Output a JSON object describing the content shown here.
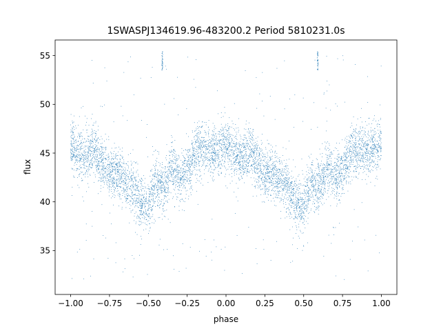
{
  "chart_data": {
    "type": "scatter",
    "title": "1SWASPJ134619.96-483200.2 Period 5810231.0s",
    "xlabel": "phase",
    "ylabel": "flux",
    "xlim": [
      -1.1,
      1.1
    ],
    "ylim": [
      30.5,
      56.6
    ],
    "xticks": [
      -1.0,
      -0.75,
      -0.5,
      -0.25,
      0.0,
      0.25,
      0.5,
      0.75,
      1.0
    ],
    "xtick_labels": [
      "−1.00",
      "−0.75",
      "−0.50",
      "−0.25",
      "0.00",
      "0.25",
      "0.50",
      "0.75",
      "1.00"
    ],
    "yticks": [
      35,
      40,
      45,
      50,
      55
    ],
    "ytick_labels": [
      "35",
      "40",
      "45",
      "50",
      "55"
    ],
    "grid": false,
    "legend": "none",
    "marker_color": "#1f77b4",
    "series": [
      {
        "label": "",
        "phase_profile": {
          "phase": [
            0.0,
            0.05,
            0.1,
            0.15,
            0.2,
            0.25,
            0.3,
            0.35,
            0.4,
            0.45,
            0.5,
            0.55,
            0.6,
            0.65,
            0.7,
            0.75,
            0.8,
            0.85,
            0.9,
            0.95,
            1.0
          ],
          "flux": [
            46.0,
            45.0,
            44.5,
            45.5,
            44.0,
            43.0,
            43.0,
            42.0,
            41.5,
            40.0,
            39.5,
            42.0,
            41.5,
            43.5,
            42.5,
            43.0,
            45.0,
            45.5,
            45.0,
            45.5,
            46.0
          ],
          "scatter": 1.3
        },
        "outlier_fraction": 0.04,
        "outlier_range": [
          32.0,
          55.0
        ],
        "flare_clusters": [
          {
            "phase": -0.41,
            "flux_range": [
              53.5,
              55.4
            ]
          },
          {
            "phase": 0.59,
            "flux_range": [
              53.5,
              55.4
            ]
          }
        ],
        "n_points": 6500
      }
    ]
  }
}
